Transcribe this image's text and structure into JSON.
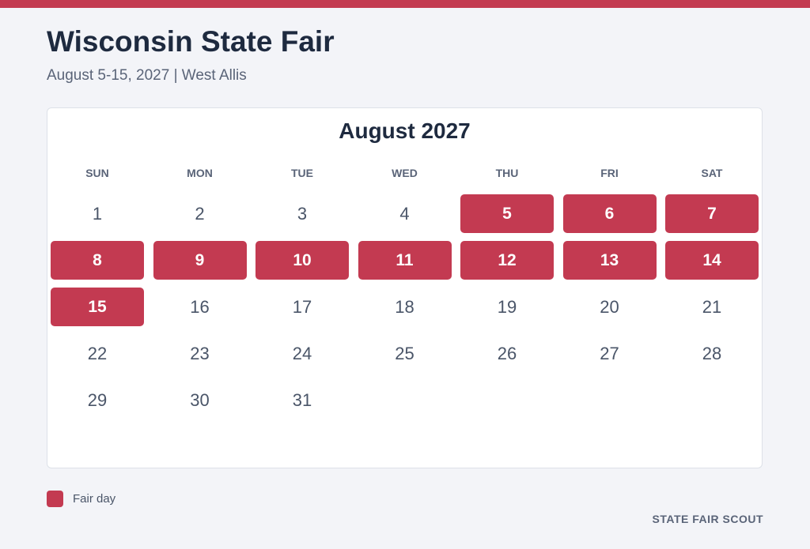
{
  "header": {
    "title": "Wisconsin State Fair",
    "subtitle": "August 5-15, 2027 | West Allis"
  },
  "calendar": {
    "month_title": "August 2027",
    "weekdays": [
      "SUN",
      "MON",
      "TUE",
      "WED",
      "THU",
      "FRI",
      "SAT"
    ],
    "weeks": [
      [
        {
          "day": 1,
          "fair": false
        },
        {
          "day": 2,
          "fair": false
        },
        {
          "day": 3,
          "fair": false
        },
        {
          "day": 4,
          "fair": false
        },
        {
          "day": 5,
          "fair": true
        },
        {
          "day": 6,
          "fair": true
        },
        {
          "day": 7,
          "fair": true
        }
      ],
      [
        {
          "day": 8,
          "fair": true
        },
        {
          "day": 9,
          "fair": true
        },
        {
          "day": 10,
          "fair": true
        },
        {
          "day": 11,
          "fair": true
        },
        {
          "day": 12,
          "fair": true
        },
        {
          "day": 13,
          "fair": true
        },
        {
          "day": 14,
          "fair": true
        }
      ],
      [
        {
          "day": 15,
          "fair": true
        },
        {
          "day": 16,
          "fair": false
        },
        {
          "day": 17,
          "fair": false
        },
        {
          "day": 18,
          "fair": false
        },
        {
          "day": 19,
          "fair": false
        },
        {
          "day": 20,
          "fair": false
        },
        {
          "day": 21,
          "fair": false
        }
      ],
      [
        {
          "day": 22,
          "fair": false
        },
        {
          "day": 23,
          "fair": false
        },
        {
          "day": 24,
          "fair": false
        },
        {
          "day": 25,
          "fair": false
        },
        {
          "day": 26,
          "fair": false
        },
        {
          "day": 27,
          "fair": false
        },
        {
          "day": 28,
          "fair": false
        }
      ],
      [
        {
          "day": 29,
          "fair": false
        },
        {
          "day": 30,
          "fair": false
        },
        {
          "day": 31,
          "fair": false
        },
        null,
        null,
        null,
        null
      ]
    ]
  },
  "legend": {
    "label": "Fair day",
    "color": "#c33a51"
  },
  "footer": {
    "brand": "STATE FAIR SCOUT"
  }
}
